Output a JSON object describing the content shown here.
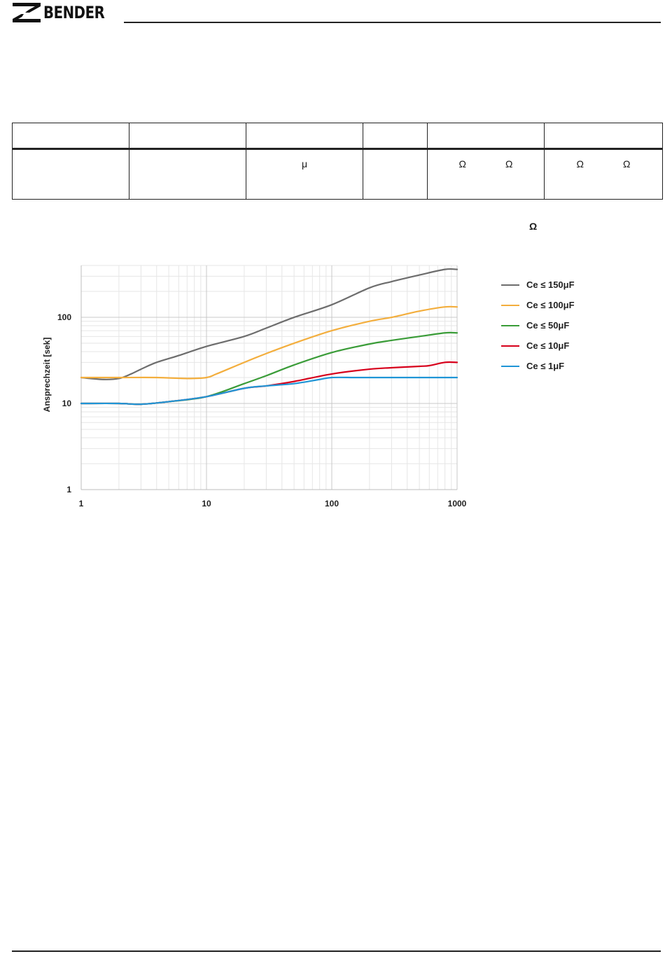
{
  "header": {
    "brand": "BENDER"
  },
  "table": {
    "row2": {
      "c3": "μ",
      "c5a": "Ω",
      "c5b": "Ω",
      "c6a": "Ω",
      "c6b": "Ω"
    }
  },
  "note_symbol": "Ω",
  "chart_data": {
    "type": "line",
    "xscale": "log",
    "yscale": "log",
    "xlim": [
      1,
      1000
    ],
    "ylim": [
      1,
      400
    ],
    "xticks": [
      1,
      10,
      100,
      1000
    ],
    "yticks": [
      1,
      10,
      100
    ],
    "xtick_labels": [
      "1",
      "10",
      "100",
      "1000"
    ],
    "ytick_labels": [
      "1",
      "10",
      "100"
    ],
    "ylabel": "Ansprechzeit [sek]",
    "xlabel": "",
    "grid": true,
    "legend_position": "right",
    "series": [
      {
        "name": "Ce ≤ 150μF",
        "color": "#6d6d6d",
        "x": [
          1,
          1.5,
          2,
          2.5,
          3,
          4,
          6,
          10,
          20,
          30,
          50,
          100,
          200,
          300,
          500,
          800,
          1000
        ],
        "y": [
          20,
          19,
          19.5,
          22,
          25,
          30,
          36,
          46,
          60,
          75,
          100,
          140,
          220,
          260,
          310,
          360,
          360
        ]
      },
      {
        "name": "Ce ≤ 100μF",
        "color": "#f3ae3d",
        "x": [
          1,
          2,
          4,
          7,
          10,
          12,
          20,
          30,
          50,
          100,
          200,
          300,
          500,
          800,
          1000
        ],
        "y": [
          20,
          20,
          20,
          19.5,
          20,
          22,
          30,
          38,
          50,
          70,
          90,
          100,
          118,
          132,
          132
        ]
      },
      {
        "name": "Ce ≤ 50μF",
        "color": "#3a9c38",
        "x": [
          1,
          2,
          3,
          5,
          10,
          20,
          30,
          50,
          100,
          200,
          300,
          500,
          800,
          1000
        ],
        "y": [
          10,
          10,
          9.8,
          10.5,
          12,
          17,
          21,
          28,
          39,
          49,
          54,
          60,
          66,
          66
        ]
      },
      {
        "name": "Ce ≤ 10μF",
        "color": "#d7001b",
        "x": [
          1,
          2,
          3,
          5,
          10,
          20,
          30,
          50,
          100,
          200,
          300,
          500,
          600,
          800,
          1000
        ],
        "y": [
          10,
          10,
          9.8,
          10.5,
          12,
          15,
          16,
          18,
          22,
          25,
          26,
          27,
          27.5,
          30,
          30
        ]
      },
      {
        "name": "Ce ≤ 1μF",
        "color": "#1f95d6",
        "x": [
          1,
          2,
          3,
          5,
          10,
          20,
          30,
          50,
          80,
          100,
          150,
          200,
          500,
          1000
        ],
        "y": [
          10,
          10,
          9.8,
          10.5,
          12,
          15,
          16,
          17,
          19,
          20,
          20,
          20,
          20,
          20
        ]
      }
    ]
  }
}
